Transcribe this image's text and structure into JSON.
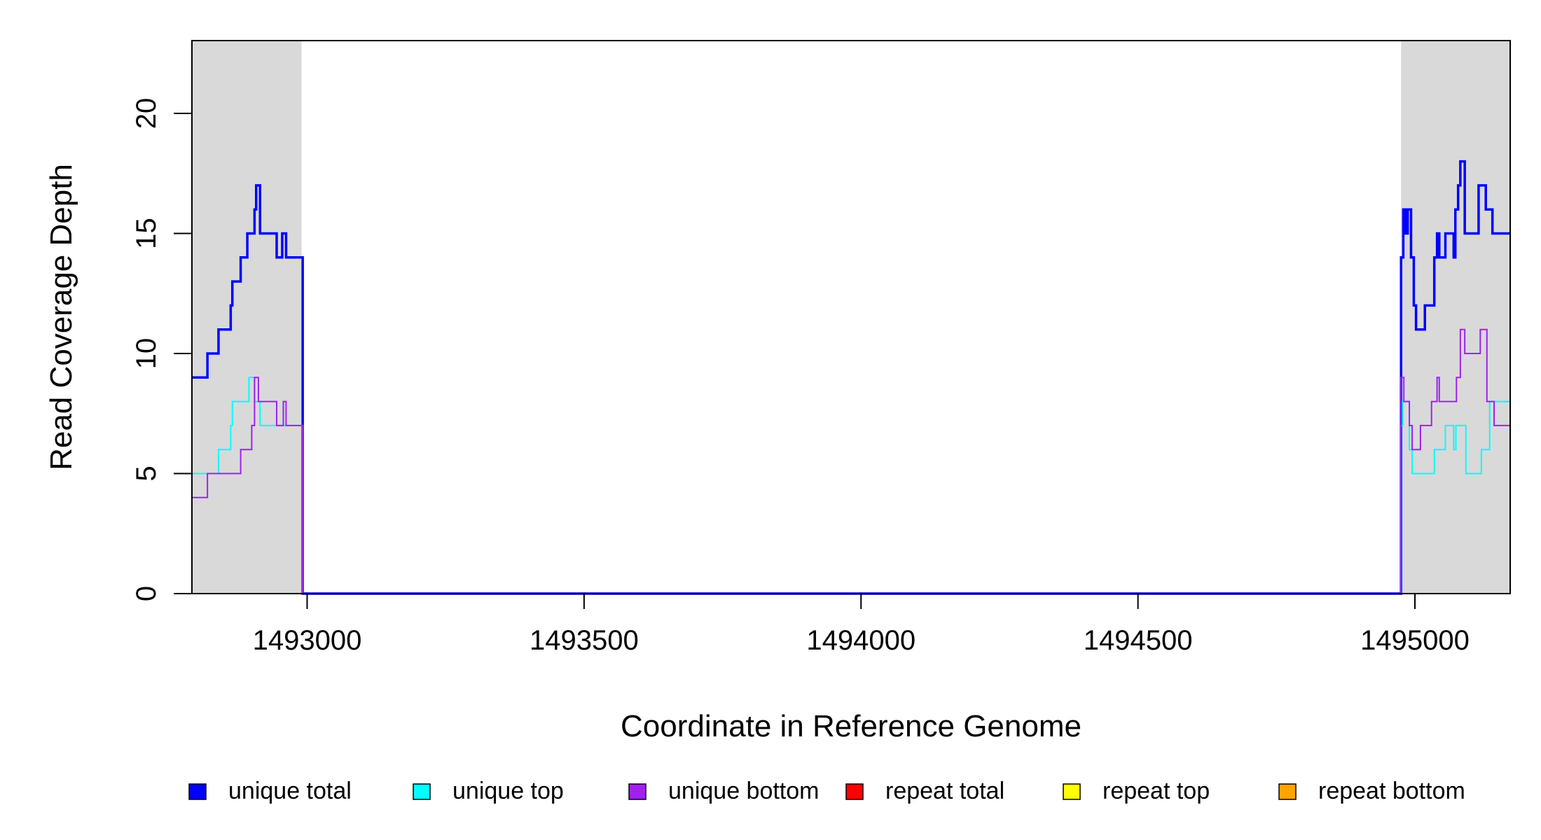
{
  "chart_data": {
    "type": "line",
    "xlabel": "Coordinate in Reference Genome",
    "ylabel": "Read Coverage Depth",
    "xlim": [
      1492792,
      1495172
    ],
    "ylim": [
      0,
      23
    ],
    "x_ticks": [
      1493000,
      1493500,
      1494000,
      1494500,
      1495000
    ],
    "x_tick_labels": [
      "1493000",
      "1493500",
      "1494000",
      "1494500",
      "1495000"
    ],
    "y_ticks": [
      0,
      5,
      10,
      15,
      20
    ],
    "y_tick_labels": [
      "0",
      "5",
      "10",
      "15",
      "20"
    ],
    "shaded_regions": [
      {
        "x": [
          1492792,
          1492990
        ],
        "color": "#d9d9d9"
      },
      {
        "x": [
          1494975,
          1495172
        ],
        "color": "#d9d9d9"
      }
    ],
    "series": [
      {
        "name": "unique total",
        "color": "#0000ff",
        "points": [
          [
            1492792,
            9
          ],
          [
            1492820,
            10
          ],
          [
            1492840,
            11
          ],
          [
            1492862,
            12
          ],
          [
            1492865,
            13
          ],
          [
            1492880,
            14
          ],
          [
            1492892,
            15
          ],
          [
            1492905,
            16
          ],
          [
            1492908,
            17
          ],
          [
            1492915,
            15
          ],
          [
            1492945,
            14
          ],
          [
            1492955,
            15
          ],
          [
            1492962,
            14
          ],
          [
            1492992,
            0
          ],
          [
            1494975,
            14
          ],
          [
            1494979,
            16
          ],
          [
            1494983,
            15
          ],
          [
            1494987,
            16
          ],
          [
            1494993,
            14
          ],
          [
            1494998,
            12
          ],
          [
            1495002,
            11
          ],
          [
            1495018,
            12
          ],
          [
            1495035,
            14
          ],
          [
            1495040,
            15
          ],
          [
            1495044,
            14
          ],
          [
            1495055,
            15
          ],
          [
            1495070,
            14
          ],
          [
            1495073,
            16
          ],
          [
            1495078,
            17
          ],
          [
            1495082,
            18
          ],
          [
            1495090,
            15
          ],
          [
            1495115,
            17
          ],
          [
            1495128,
            16
          ],
          [
            1495140,
            15
          ],
          [
            1495172,
            15
          ]
        ]
      },
      {
        "name": "unique top",
        "color": "#00ffff",
        "points": [
          [
            1492792,
            5
          ],
          [
            1492840,
            6
          ],
          [
            1492862,
            7
          ],
          [
            1492865,
            8
          ],
          [
            1492895,
            9
          ],
          [
            1492905,
            8
          ],
          [
            1492915,
            7
          ],
          [
            1492992,
            0
          ],
          [
            1494975,
            7
          ],
          [
            1494978,
            8
          ],
          [
            1494990,
            6
          ],
          [
            1494995,
            5
          ],
          [
            1495035,
            6
          ],
          [
            1495055,
            7
          ],
          [
            1495070,
            6
          ],
          [
            1495074,
            7
          ],
          [
            1495092,
            5
          ],
          [
            1495120,
            6
          ],
          [
            1495135,
            8
          ],
          [
            1495172,
            8
          ]
        ]
      },
      {
        "name": "unique bottom",
        "color": "#a020f0",
        "points": [
          [
            1492792,
            4
          ],
          [
            1492820,
            5
          ],
          [
            1492880,
            6
          ],
          [
            1492900,
            7
          ],
          [
            1492905,
            9
          ],
          [
            1492912,
            8
          ],
          [
            1492945,
            7
          ],
          [
            1492957,
            8
          ],
          [
            1492962,
            7
          ],
          [
            1492992,
            0
          ],
          [
            1494975,
            9
          ],
          [
            1494980,
            8
          ],
          [
            1494990,
            7
          ],
          [
            1494995,
            6
          ],
          [
            1495010,
            7
          ],
          [
            1495030,
            8
          ],
          [
            1495040,
            9
          ],
          [
            1495044,
            8
          ],
          [
            1495075,
            9
          ],
          [
            1495082,
            11
          ],
          [
            1495090,
            10
          ],
          [
            1495118,
            11
          ],
          [
            1495130,
            8
          ],
          [
            1495143,
            7
          ],
          [
            1495172,
            7
          ]
        ]
      },
      {
        "name": "repeat total",
        "color": "#ff0000",
        "points": [
          [
            1492792,
            0
          ],
          [
            1495172,
            0
          ]
        ]
      },
      {
        "name": "repeat top",
        "color": "#ffff00",
        "points": [
          [
            1492792,
            0
          ],
          [
            1495172,
            0
          ]
        ]
      },
      {
        "name": "repeat bottom",
        "color": "#ffa500",
        "points": [
          [
            1492792,
            0
          ],
          [
            1495172,
            0
          ]
        ]
      }
    ],
    "legend": {
      "placement": "bottom",
      "entries": [
        {
          "label": "unique total",
          "color": "#0000ff"
        },
        {
          "label": "unique top",
          "color": "#00ffff"
        },
        {
          "label": "unique bottom",
          "color": "#a020f0"
        },
        {
          "label": "repeat total",
          "color": "#ff0000"
        },
        {
          "label": "repeat top",
          "color": "#ffff00"
        },
        {
          "label": "repeat bottom",
          "color": "#ffa500"
        }
      ]
    }
  }
}
